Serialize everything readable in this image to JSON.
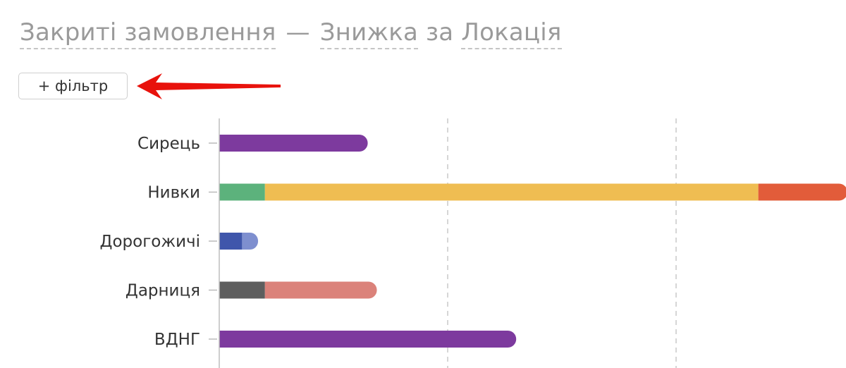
{
  "header": {
    "title_main": "Закриті замовлення",
    "separator": "—",
    "metric": "Знижка",
    "by_word": "за",
    "dimension": "Локація"
  },
  "toolbar": {
    "filter_button": "+ фільтр"
  },
  "annotation": {
    "arrow_color": "#e8120c"
  },
  "chart_data": {
    "type": "bar",
    "orientation": "horizontal",
    "stacked": true,
    "categories": [
      "Сирець",
      "Нивки",
      "Дорогожичі",
      "Дарниця",
      "ВДНГ"
    ],
    "xlim": [
      0,
      2.75
    ],
    "grid": true,
    "series": [
      {
        "color": "#7d3a9e",
        "values": [
          0.65,
          0,
          0,
          0,
          1.3
        ]
      },
      {
        "color": "#5cb27c",
        "values": [
          0,
          0.2,
          0,
          0,
          0
        ]
      },
      {
        "color": "#efbd52",
        "values": [
          0,
          2.16,
          0,
          0,
          0
        ]
      },
      {
        "color": "#e25c3a",
        "values": [
          0,
          0.39,
          0,
          0,
          0
        ]
      },
      {
        "color": "#3f56ab",
        "values": [
          0,
          0,
          0.1,
          0,
          0
        ]
      },
      {
        "color": "#7e8fcf",
        "values": [
          0,
          0,
          0.07,
          0,
          0
        ]
      },
      {
        "color": "#5e5e5e",
        "values": [
          0,
          0,
          0,
          0.2,
          0
        ]
      },
      {
        "color": "#db827a",
        "values": [
          0,
          0,
          0,
          0.49,
          0
        ]
      }
    ]
  }
}
